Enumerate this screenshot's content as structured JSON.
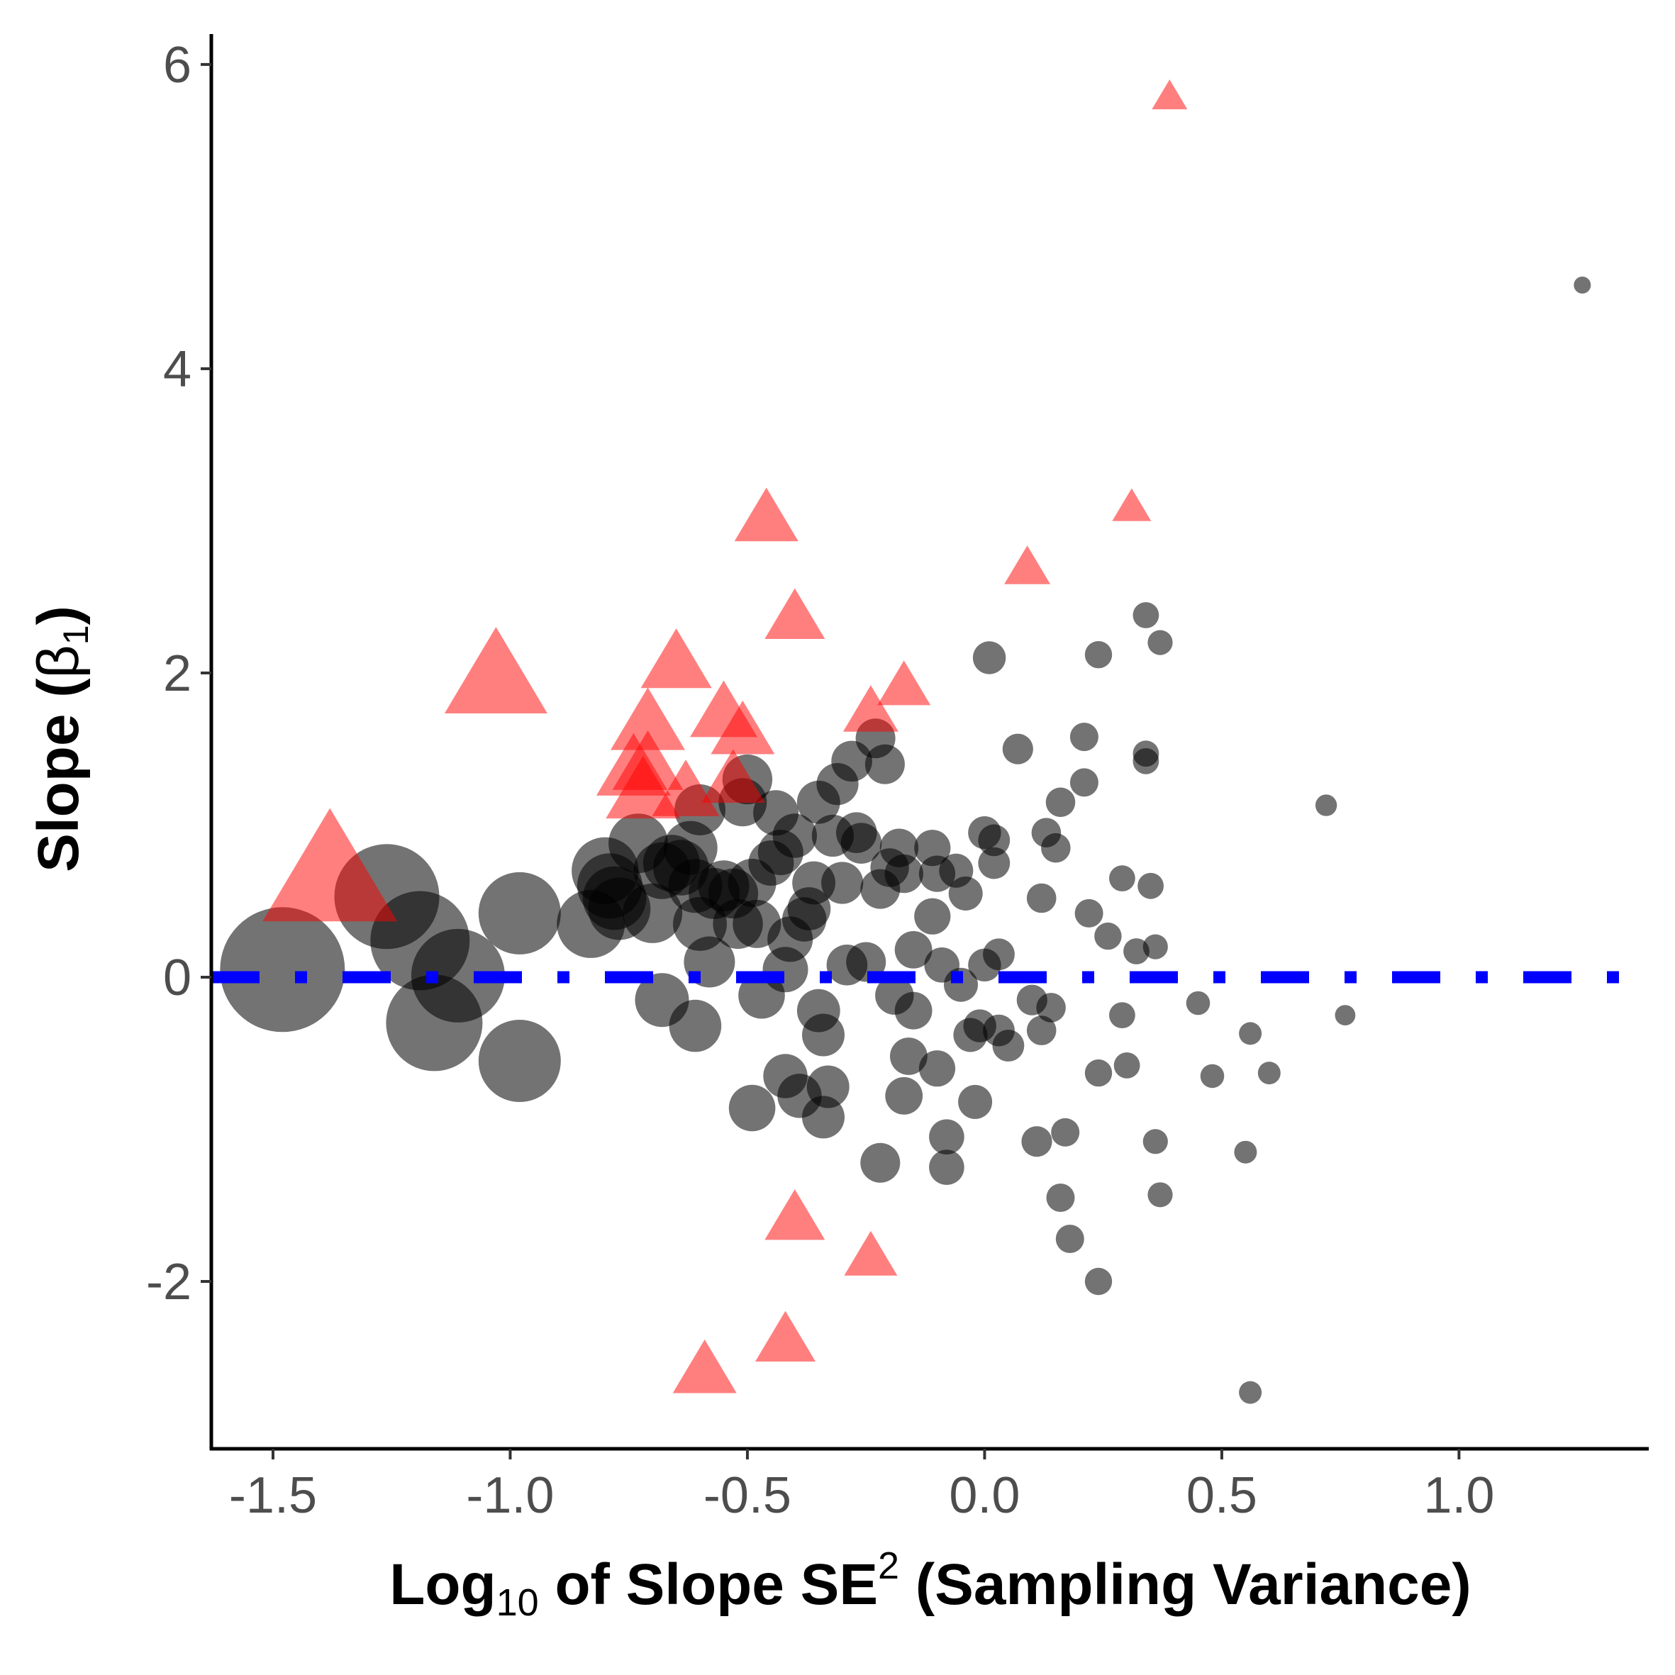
{
  "chart_data": {
    "type": "scatter",
    "title": "",
    "xlabel": {
      "parts": [
        {
          "text": "Log",
          "sub": false,
          "sup": false
        },
        {
          "text": "10",
          "sub": true,
          "sup": false
        },
        {
          "text": " of Slope SE",
          "sub": false,
          "sup": false
        },
        {
          "text": "2",
          "sub": false,
          "sup": true
        },
        {
          "text": " (Sampling Variance)",
          "sub": false,
          "sup": false
        }
      ]
    },
    "ylabel": {
      "parts": [
        {
          "text": "Slope (",
          "sub": false
        },
        {
          "text": "β",
          "sub": false,
          "light": true
        },
        {
          "text": "1",
          "sub": true,
          "light": true
        },
        {
          "text": ")",
          "sub": false
        }
      ]
    },
    "xlim": [
      -1.63,
      1.4
    ],
    "ylim": [
      -3.1,
      6.2
    ],
    "x_ticks": [
      {
        "value": -1.5,
        "label": "-1.5"
      },
      {
        "value": -1.0,
        "label": "-1.0"
      },
      {
        "value": -0.5,
        "label": "-0.5"
      },
      {
        "value": 0.0,
        "label": "0.0"
      },
      {
        "value": 0.5,
        "label": "0.5"
      },
      {
        "value": 1.0,
        "label": "1.0"
      }
    ],
    "y_ticks": [
      {
        "value": -2,
        "label": "-2"
      },
      {
        "value": 0,
        "label": "0"
      },
      {
        "value": 2,
        "label": "2"
      },
      {
        "value": 4,
        "label": "4"
      },
      {
        "value": 6,
        "label": "6"
      }
    ],
    "reference_line": {
      "y": 0,
      "color": "#0000ff",
      "style": "dot-dash"
    },
    "grid": false,
    "legend": "none",
    "series": [
      {
        "marker": "circle",
        "color": "#000000",
        "opacity": 0.55,
        "points": [
          [
            -1.48,
            0.05,
            2.2
          ],
          [
            -1.26,
            0.53,
            1.85
          ],
          [
            -1.19,
            0.24,
            1.75
          ],
          [
            -1.16,
            -0.3,
            1.7
          ],
          [
            -1.11,
            0.01,
            1.65
          ],
          [
            -0.98,
            0.42,
            1.45
          ],
          [
            -0.98,
            -0.55,
            1.45
          ],
          [
            -0.83,
            0.35,
            1.2
          ],
          [
            -0.8,
            0.7,
            1.18
          ],
          [
            -0.79,
            0.6,
            1.15
          ],
          [
            -0.78,
            0.52,
            1.12
          ],
          [
            -0.77,
            0.45,
            1.1
          ],
          [
            -0.73,
            0.88,
            1.05
          ],
          [
            -0.7,
            0.42,
            1.05
          ],
          [
            -0.68,
            0.7,
            1.0
          ],
          [
            -0.66,
            0.75,
            1.0
          ],
          [
            -0.64,
            0.72,
            0.98
          ],
          [
            -0.62,
            0.85,
            0.95
          ],
          [
            -0.61,
            0.6,
            0.95
          ],
          [
            -0.6,
            0.35,
            0.95
          ],
          [
            -0.68,
            -0.15,
            0.95
          ],
          [
            -0.61,
            -0.32,
            0.92
          ],
          [
            -0.58,
            0.1,
            0.9
          ],
          [
            -0.6,
            1.1,
            0.9
          ],
          [
            -0.57,
            0.55,
            0.9
          ],
          [
            -0.55,
            0.6,
            0.9
          ],
          [
            -0.53,
            0.55,
            0.88
          ],
          [
            -0.52,
            0.35,
            0.88
          ],
          [
            -0.5,
            1.3,
            0.88
          ],
          [
            -0.51,
            1.15,
            0.85
          ],
          [
            -0.49,
            0.62,
            0.85
          ],
          [
            -0.48,
            0.35,
            0.85
          ],
          [
            -0.49,
            -0.86,
            0.82
          ],
          [
            -0.47,
            -0.12,
            0.82
          ],
          [
            -0.45,
            0.75,
            0.8
          ],
          [
            -0.44,
            1.08,
            0.8
          ],
          [
            -0.43,
            0.82,
            0.8
          ],
          [
            -0.42,
            0.05,
            0.8
          ],
          [
            -0.41,
            0.25,
            0.8
          ],
          [
            -0.4,
            0.93,
            0.78
          ],
          [
            -0.42,
            -0.65,
            0.78
          ],
          [
            -0.39,
            -0.78,
            0.78
          ],
          [
            -0.38,
            0.38,
            0.78
          ],
          [
            -0.37,
            0.45,
            0.76
          ],
          [
            -0.36,
            0.62,
            0.76
          ],
          [
            -0.35,
            -0.22,
            0.76
          ],
          [
            -0.35,
            1.15,
            0.76
          ],
          [
            -0.34,
            -0.38,
            0.75
          ],
          [
            -0.33,
            -0.72,
            0.75
          ],
          [
            -0.34,
            -0.92,
            0.75
          ],
          [
            -0.32,
            0.93,
            0.74
          ],
          [
            -0.31,
            1.27,
            0.74
          ],
          [
            -0.3,
            0.62,
            0.74
          ],
          [
            -0.29,
            0.08,
            0.72
          ],
          [
            -0.28,
            1.42,
            0.72
          ],
          [
            -0.27,
            0.95,
            0.72
          ],
          [
            -0.26,
            0.88,
            0.72
          ],
          [
            -0.25,
            0.1,
            0.7
          ],
          [
            -0.23,
            1.57,
            0.7
          ],
          [
            -0.22,
            0.58,
            0.7
          ],
          [
            -0.21,
            1.4,
            0.7
          ],
          [
            -0.22,
            -1.22,
            0.7
          ],
          [
            -0.2,
            0.72,
            0.68
          ],
          [
            -0.19,
            -0.12,
            0.68
          ],
          [
            -0.18,
            0.85,
            0.68
          ],
          [
            -0.17,
            0.68,
            0.68
          ],
          [
            -0.17,
            -0.78,
            0.66
          ],
          [
            -0.16,
            -0.52,
            0.66
          ],
          [
            -0.15,
            0.18,
            0.66
          ],
          [
            -0.15,
            -0.22,
            0.66
          ],
          [
            -0.11,
            0.85,
            0.64
          ],
          [
            -0.11,
            0.4,
            0.64
          ],
          [
            -0.1,
            0.68,
            0.64
          ],
          [
            -0.1,
            -0.6,
            0.64
          ],
          [
            -0.09,
            0.08,
            0.62
          ],
          [
            -0.08,
            -1.05,
            0.62
          ],
          [
            -0.08,
            -1.25,
            0.62
          ],
          [
            -0.06,
            0.7,
            0.6
          ],
          [
            -0.05,
            -0.05,
            0.6
          ],
          [
            -0.04,
            0.55,
            0.6
          ],
          [
            -0.03,
            -0.38,
            0.6
          ],
          [
            -0.02,
            -0.82,
            0.6
          ],
          [
            0.0,
            0.95,
            0.58
          ],
          [
            0.01,
            2.1,
            0.58
          ],
          [
            0.0,
            0.08,
            0.58
          ],
          [
            -0.01,
            -0.32,
            0.58
          ],
          [
            0.02,
            0.75,
            0.56
          ],
          [
            0.02,
            0.9,
            0.56
          ],
          [
            0.03,
            0.15,
            0.56
          ],
          [
            0.03,
            -0.35,
            0.56
          ],
          [
            0.05,
            -0.45,
            0.56
          ],
          [
            0.07,
            1.5,
            0.54
          ],
          [
            0.1,
            -0.15,
            0.54
          ],
          [
            0.11,
            -1.08,
            0.54
          ],
          [
            0.12,
            0.52,
            0.52
          ],
          [
            0.12,
            -0.35,
            0.52
          ],
          [
            0.13,
            0.95,
            0.52
          ],
          [
            0.14,
            -0.2,
            0.52
          ],
          [
            0.15,
            0.85,
            0.52
          ],
          [
            0.16,
            1.15,
            0.52
          ],
          [
            0.16,
            -1.45,
            0.5
          ],
          [
            0.17,
            -1.02,
            0.5
          ],
          [
            0.18,
            -1.72,
            0.5
          ],
          [
            0.21,
            1.58,
            0.5
          ],
          [
            0.21,
            1.28,
            0.5
          ],
          [
            0.22,
            0.42,
            0.5
          ],
          [
            0.24,
            2.12,
            0.48
          ],
          [
            0.24,
            -0.63,
            0.48
          ],
          [
            0.24,
            -2.0,
            0.48
          ],
          [
            0.26,
            0.27,
            0.48
          ],
          [
            0.29,
            0.65,
            0.46
          ],
          [
            0.29,
            -0.25,
            0.46
          ],
          [
            0.3,
            -0.58,
            0.46
          ],
          [
            0.32,
            0.17,
            0.46
          ],
          [
            0.34,
            2.38,
            0.46
          ],
          [
            0.34,
            1.47,
            0.46
          ],
          [
            0.34,
            1.42,
            0.46
          ],
          [
            0.35,
            0.6,
            0.46
          ],
          [
            0.36,
            0.2,
            0.44
          ],
          [
            0.36,
            -1.08,
            0.44
          ],
          [
            0.37,
            2.2,
            0.44
          ],
          [
            0.37,
            -1.43,
            0.44
          ],
          [
            0.45,
            -0.17,
            0.42
          ],
          [
            0.48,
            -0.65,
            0.42
          ],
          [
            0.55,
            -1.15,
            0.4
          ],
          [
            0.56,
            -0.37,
            0.4
          ],
          [
            0.56,
            -2.73,
            0.4
          ],
          [
            0.6,
            -0.63,
            0.4
          ],
          [
            0.72,
            1.13,
            0.38
          ],
          [
            0.76,
            -0.25,
            0.36
          ],
          [
            1.26,
            4.55,
            0.3
          ]
        ]
      },
      {
        "marker": "triangle",
        "color": "#ff0000",
        "opacity": 0.5,
        "points": [
          [
            -1.38,
            0.65,
            1.9
          ],
          [
            -1.03,
            1.95,
            1.45
          ],
          [
            -0.74,
            1.35,
            1.05
          ],
          [
            -0.72,
            1.2,
            1.05
          ],
          [
            -0.71,
            1.65,
            1.05
          ],
          [
            -0.71,
            1.38,
            1.0
          ],
          [
            -0.65,
            2.05,
            1.0
          ],
          [
            -0.63,
            1.2,
            0.95
          ],
          [
            -0.55,
            1.72,
            0.95
          ],
          [
            -0.53,
            1.28,
            0.9
          ],
          [
            -0.51,
            1.6,
            0.9
          ],
          [
            -0.46,
            3.0,
            0.9
          ],
          [
            -0.4,
            2.35,
            0.85
          ],
          [
            -0.4,
            -1.6,
            0.85
          ],
          [
            -0.42,
            -2.4,
            0.85
          ],
          [
            -0.59,
            -2.6,
            0.9
          ],
          [
            -0.24,
            1.73,
            0.78
          ],
          [
            -0.17,
            1.9,
            0.75
          ],
          [
            -0.24,
            -1.85,
            0.75
          ],
          [
            0.09,
            2.68,
            0.65
          ],
          [
            0.31,
            3.08,
            0.55
          ],
          [
            0.39,
            5.78,
            0.5
          ]
        ]
      }
    ]
  }
}
